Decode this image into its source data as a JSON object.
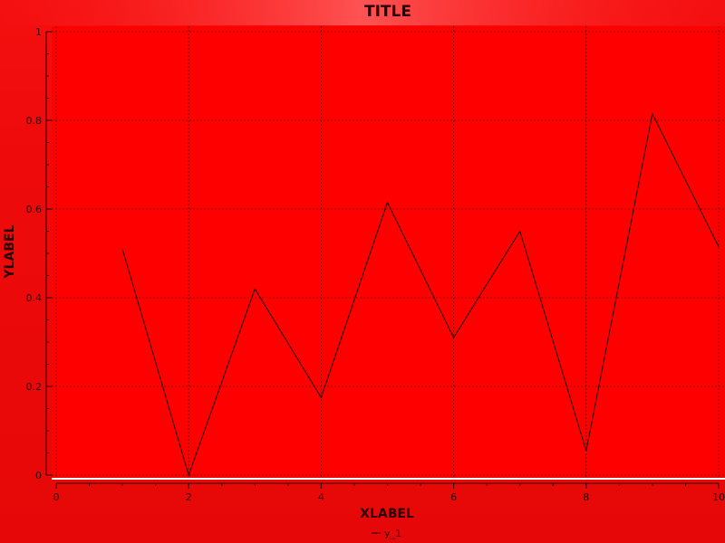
{
  "chart_data": {
    "type": "line",
    "title": "TITLE",
    "xlabel": "XLABEL",
    "ylabel": "YLABEL",
    "xlim": [
      0,
      10
    ],
    "ylim": [
      0,
      1
    ],
    "x_ticks": [
      0,
      2,
      4,
      6,
      8,
      10
    ],
    "y_ticks": [
      0,
      0.2,
      0.4,
      0.6,
      0.8,
      1
    ],
    "x_tick_labels": [
      "0",
      "2",
      "4",
      "6",
      "8",
      "10"
    ],
    "y_tick_labels": [
      "0",
      "0.2",
      "0.4",
      "0.6",
      "0.8",
      "1"
    ],
    "grid": true,
    "legend_position": "bottom-center",
    "series": [
      {
        "name": "y_1",
        "x": [
          1,
          2,
          3,
          4,
          5,
          6,
          7,
          8,
          9,
          10
        ],
        "y": [
          0.51,
          0.0,
          0.42,
          0.175,
          0.615,
          0.31,
          0.55,
          0.055,
          0.815,
          0.515
        ]
      }
    ],
    "colors": {
      "background": "#e60808",
      "plot_area": "#ff0000",
      "line": "#1a0000",
      "grid": "#3a0000",
      "axis": "#2a0000",
      "plot_baseline": "#ffffff"
    }
  }
}
